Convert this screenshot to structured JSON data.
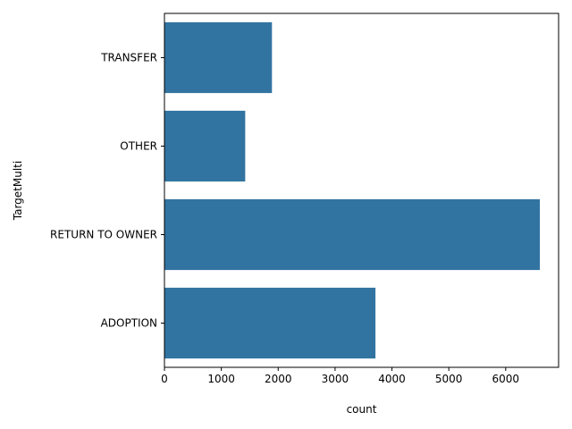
{
  "chart_data": {
    "type": "bar",
    "orientation": "horizontal",
    "categories": [
      "TRANSFER",
      "OTHER",
      "RETURN TO OWNER",
      "ADOPTION"
    ],
    "values": [
      1890,
      1420,
      6600,
      3710
    ],
    "xlabel": "count",
    "ylabel": "TargetMulti",
    "xlim": [
      0,
      6930
    ],
    "xticks": [
      0,
      1000,
      2000,
      3000,
      4000,
      5000,
      6000
    ],
    "grid": false,
    "bar_color": "#3274a1"
  }
}
